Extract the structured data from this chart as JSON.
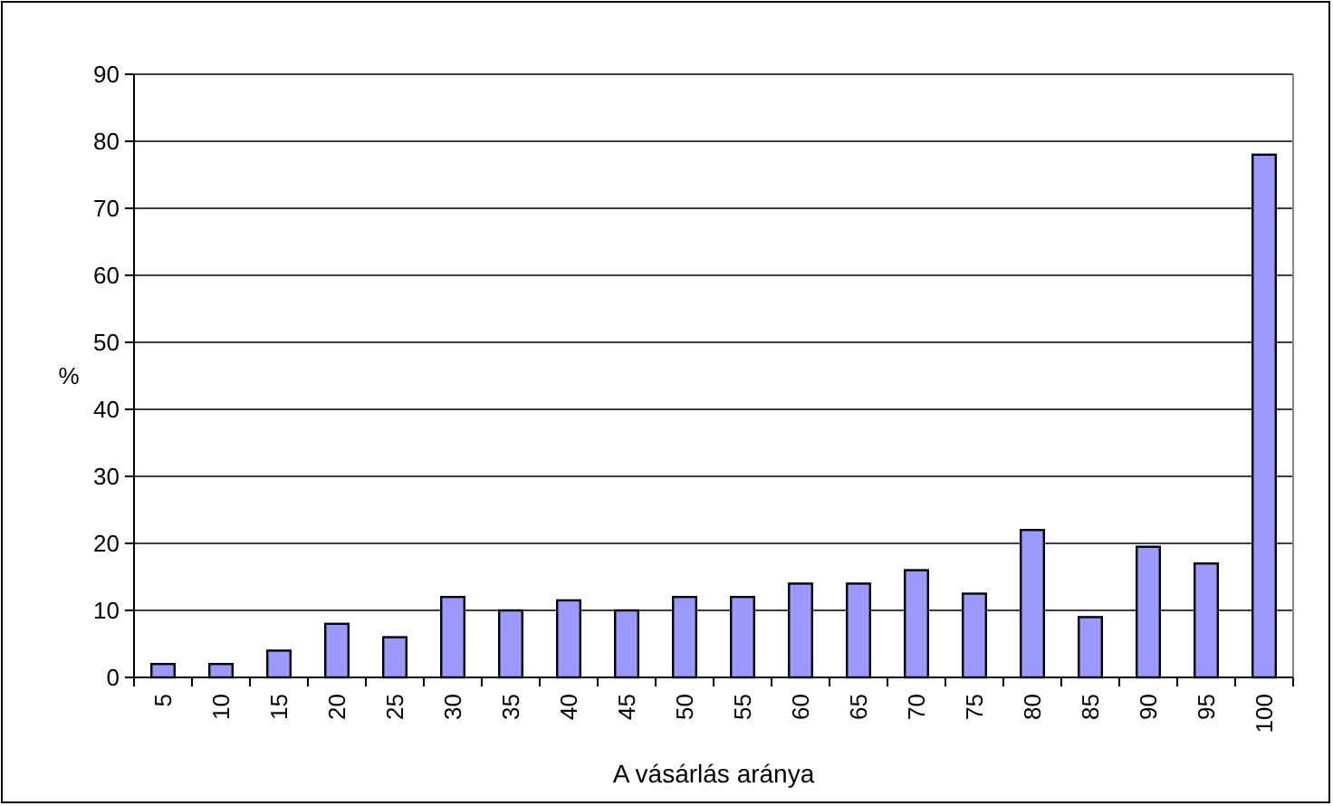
{
  "chart_data": {
    "type": "bar",
    "xlabel": "A vásárlás aránya",
    "ylabel": "%",
    "categories": [
      "5",
      "10",
      "15",
      "20",
      "25",
      "30",
      "35",
      "40",
      "45",
      "50",
      "55",
      "60",
      "65",
      "70",
      "75",
      "80",
      "85",
      "90",
      "95",
      "100"
    ],
    "values": [
      2,
      2,
      4,
      8,
      6,
      12,
      10,
      11.5,
      10,
      12,
      12,
      14,
      14,
      16,
      12.5,
      22,
      9,
      19.5,
      17,
      78
    ],
    "color": "#9999ff",
    "ylim": [
      0,
      90
    ],
    "yticks": [
      0,
      10,
      20,
      30,
      40,
      50,
      60,
      70,
      80,
      90
    ],
    "grid": "y"
  }
}
